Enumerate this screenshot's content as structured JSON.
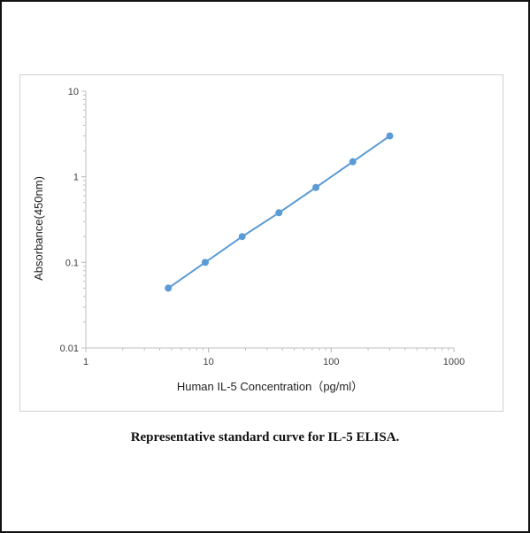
{
  "caption": "Representative standard curve for IL-5 ELISA.",
  "colors": {
    "series": "#5b9bd5",
    "axis": "#bfbfbf",
    "text": "#404040"
  },
  "chart_data": {
    "type": "line",
    "title": "",
    "xlabel": "Human IL-5 Concentration（pg/ml）",
    "ylabel": "Absorbance(450nm)",
    "xscale": "log",
    "yscale": "log",
    "xlim": [
      1,
      1000
    ],
    "ylim": [
      0.01,
      10
    ],
    "xticks": [
      {
        "value": 1,
        "label": "1"
      },
      {
        "value": 10,
        "label": "10"
      },
      {
        "value": 100,
        "label": "100"
      },
      {
        "value": 1000,
        "label": "1000"
      }
    ],
    "yticks": [
      {
        "value": 0.01,
        "label": "0.01"
      },
      {
        "value": 0.1,
        "label": "0.1"
      },
      {
        "value": 1,
        "label": "1"
      },
      {
        "value": 10,
        "label": "10"
      }
    ],
    "grid": false,
    "legend": "none",
    "series": [
      {
        "x": [
          4.7,
          9.4,
          18.8,
          37.5,
          75,
          150,
          300
        ],
        "y": [
          0.05,
          0.1,
          0.2,
          0.38,
          0.75,
          1.5,
          3.0
        ]
      }
    ]
  }
}
